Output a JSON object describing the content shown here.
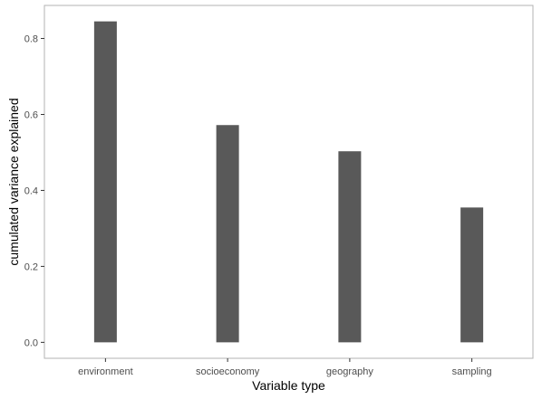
{
  "chart_data": {
    "type": "bar",
    "title": "",
    "xlabel": "Variable type",
    "ylabel": "cumulated variance explained",
    "categories": [
      "environment",
      "socioeconomy",
      "geography",
      "sampling"
    ],
    "values": [
      0.845,
      0.572,
      0.503,
      0.355
    ],
    "ylim": [
      -0.042,
      0.887
    ],
    "yticks": [
      0.0,
      0.2,
      0.4,
      0.6,
      0.8
    ],
    "ytick_labels": [
      "0.0",
      "0.2",
      "0.4",
      "0.6",
      "0.8"
    ],
    "grid": false,
    "legend": "none",
    "bar_color": "#595959",
    "panel_border_color": "#b3b3b3",
    "axis_tick_color": "#333333"
  }
}
